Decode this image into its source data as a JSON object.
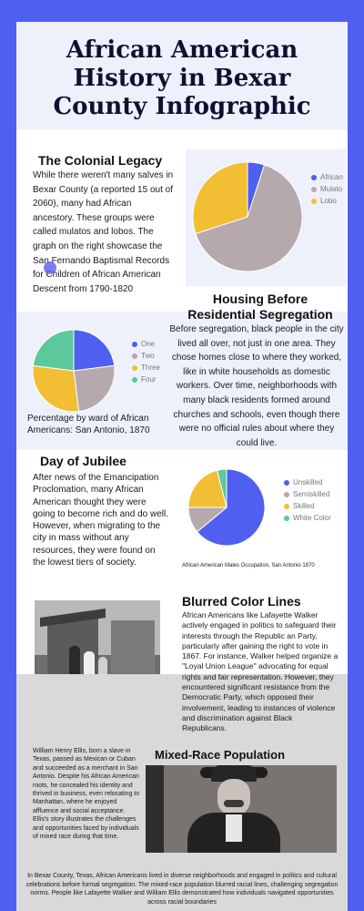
{
  "title": "African American History in Bexar County Infographic",
  "colonial": {
    "heading": "The Colonial Legacy",
    "body": "While there weren't many salves in Bexar County (a reported 15 out of 2060), many had African ancestory. These groups were called mulatos and lobos. The graph on the right showcase the San Fernando Baptismal Records for Children of African American Descent from 1790-1820"
  },
  "housing": {
    "heading": "Housing Before Residential Segregation",
    "body": "Before segregation, black people in the city lived all over, not just in one area. They chose homes close to where they worked, like in white households as domestic workers. Over time, neighborhoods with many black residents formed around churches and schools, even though there were no official rules about where they could live.",
    "chart_caption": "Percentage by ward of African Americans: San Antonio, 1870"
  },
  "jubilee": {
    "heading": "Day of Jubilee",
    "body": "After news of the Emancipation Proclomation, many African American thought they were going to become rich and do well. However, when migrating to the city in mass without any resources, they were found on the lowest tiers of society.",
    "chart_caption": "African American Males Occupation, San Antonio 1870"
  },
  "blurred": {
    "heading": "Blurred Color Lines",
    "body": "African Americans like Lafayette Walker actively engaged in politics to safeguard their interests through the Republic an Party, particularly after gaining the right to vote in 1867. For instance, Walker helped organize a \"Loyal Union League\" advocating for equal rights and fair representation. However, they encountered significant resistance from the Democratic Party, which opposed their involvement, leading to instances of violence and discrimination against Black Republicans."
  },
  "mixed": {
    "heading": "Mixed-Race Population",
    "body": "William Henry Ellis, born a slave in Texas, passed as Mexican or Cuban and succeeded as a merchant in San Antonio. Despite his African American roots, he concealed his identity and thrived in business, even relocating to Manhattan, where he enjoyed affluence and social acceptance. Ellis's story illustrates the challenges and opportunities faced by individuals of mixed race during that time."
  },
  "footer": "In Bexar County, Texas, African Americans lived in diverse neighborhoods and engaged in politics and cultural celebrations before formal segregation. The mixed-race population blurred racial lines, challenging segregation norms. People like Lafayette Walker and William Ellis demonstrated how individuals navigated opportunities across racial boundaries",
  "chart_data": [
    {
      "type": "pie",
      "categories": [
        "African",
        "Mulato",
        "Lobo"
      ],
      "values": [
        5,
        65,
        30
      ],
      "colors": [
        "#4f5fef",
        "#b5a9ae",
        "#f2be33"
      ],
      "legend": "right"
    },
    {
      "type": "pie",
      "categories": [
        "One",
        "Two",
        "Three",
        "Four"
      ],
      "values": [
        23,
        25,
        29,
        23
      ],
      "colors": [
        "#4f5fef",
        "#b5a9ae",
        "#f2be33",
        "#5cc89b"
      ],
      "legend": "right"
    },
    {
      "type": "pie",
      "categories": [
        "Unskilled",
        "Semiskilled",
        "Skilled",
        "White Color"
      ],
      "values": [
        64,
        11,
        21,
        4
      ],
      "colors": [
        "#4f5fef",
        "#b5a9ae",
        "#f2be33",
        "#5cc89b"
      ],
      "legend": "right"
    }
  ]
}
